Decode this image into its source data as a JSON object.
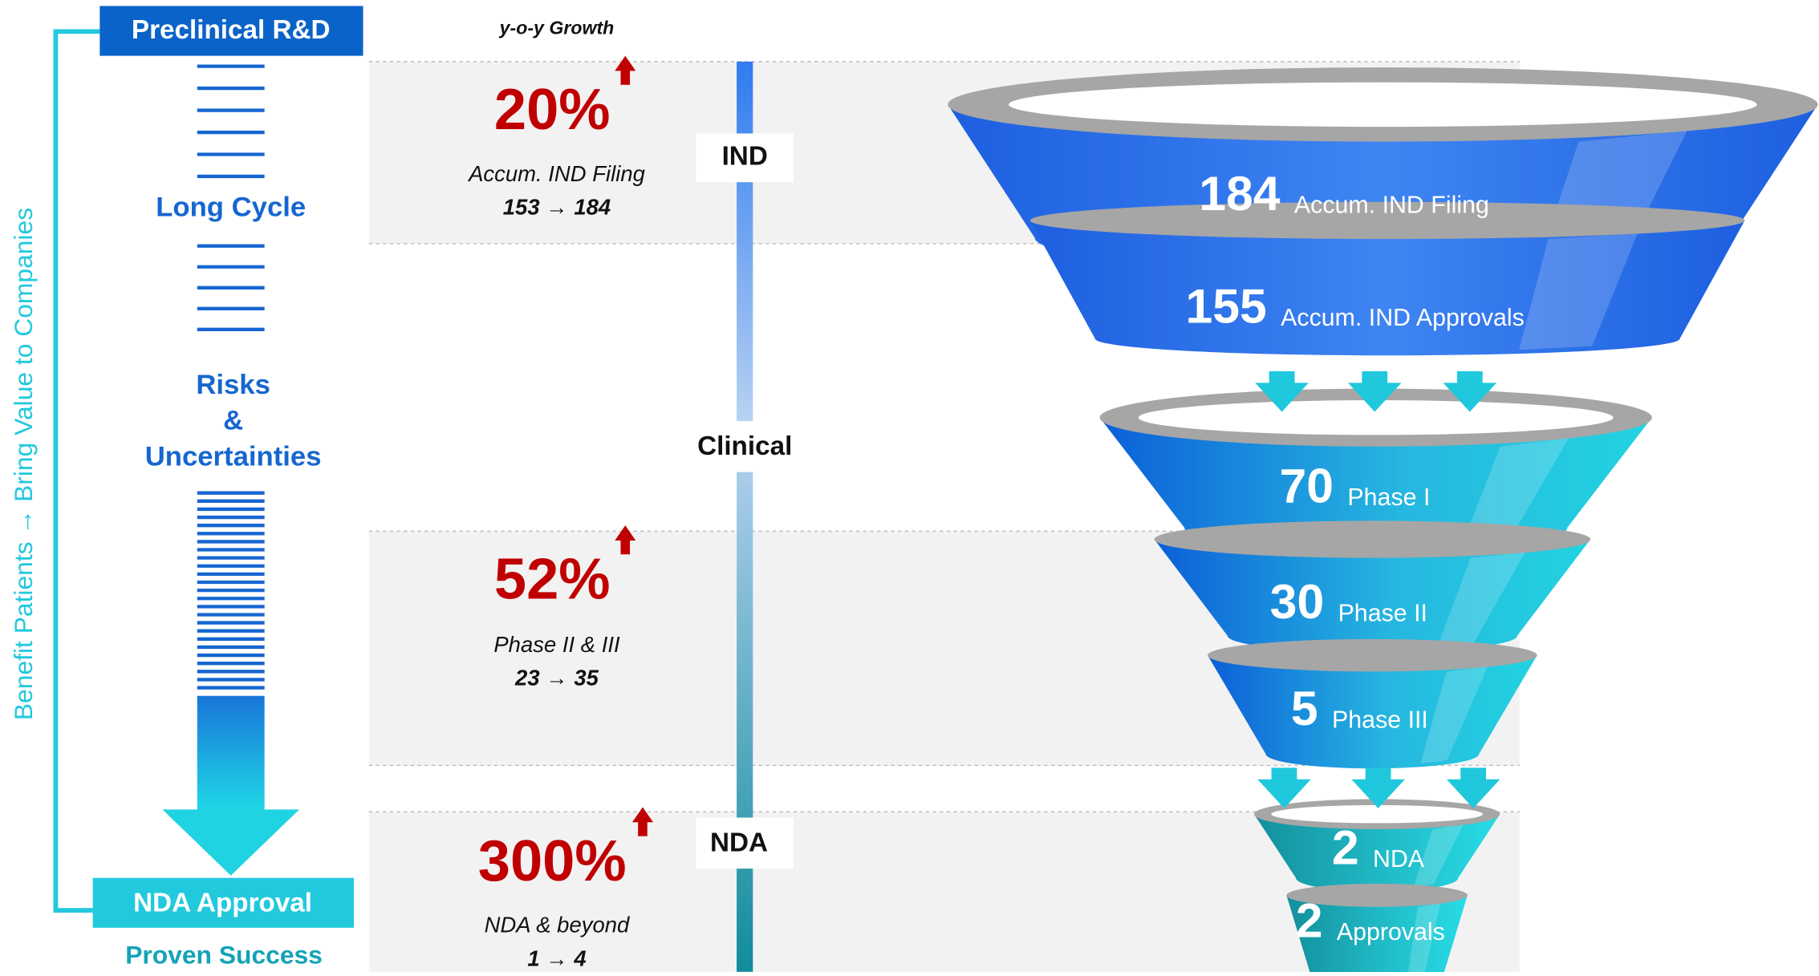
{
  "sidebar": {
    "top_label": "Preclinical R&D",
    "long_cycle": "Long Cycle",
    "risks": [
      "Risks",
      "&",
      "Uncertainties"
    ],
    "bottom_label": "NDA Approval",
    "proven": "Proven Success",
    "vertical_text": "Benefit Patients → Bring Value to Companies"
  },
  "growth_header": "y-o-y Growth",
  "growth": [
    {
      "percent": "20%",
      "label": "Accum. IND Filing",
      "change": "153 → 184"
    },
    {
      "percent": "52%",
      "label": "Phase II & III",
      "change": "23 → 35"
    },
    {
      "percent": "300%",
      "label": "NDA & beyond",
      "change": "1 → 4"
    }
  ],
  "stages": [
    "IND",
    "Clinical",
    "NDA"
  ],
  "funnel": [
    {
      "value": "184",
      "label": "Accum. IND Filing"
    },
    {
      "value": "155",
      "label": "Accum. IND Approvals"
    },
    {
      "value": "70",
      "label": "Phase I"
    },
    {
      "value": "30",
      "label": "Phase II"
    },
    {
      "value": "5",
      "label": "Phase III"
    },
    {
      "value": "2",
      "label": "NDA"
    },
    {
      "value": "2",
      "label": "Approvals"
    }
  ]
}
